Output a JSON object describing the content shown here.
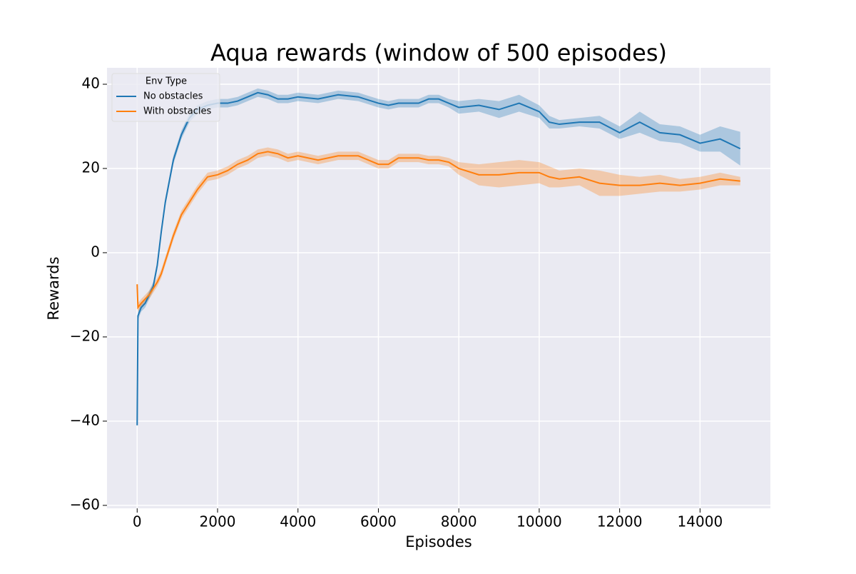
{
  "chart_data": {
    "type": "line",
    "title": "Aqua rewards (window of 500 episodes)",
    "x_label": "Episodes",
    "y_label": "Rewards",
    "legend_title": "Env Type",
    "legend_position": "upper left",
    "background": "#eaeaf2",
    "grid": true,
    "xlim": [
      -750,
      15750
    ],
    "ylim": [
      -60.7,
      43.9
    ],
    "xticks": [
      0,
      2000,
      4000,
      6000,
      8000,
      10000,
      12000,
      14000
    ],
    "yticks": [
      {
        "value": -60,
        "label": "−60"
      },
      {
        "value": -40,
        "label": "−40"
      },
      {
        "value": -20,
        "label": "−20"
      },
      0,
      20,
      40
    ],
    "x": [
      0,
      20,
      100,
      200,
      300,
      400,
      500,
      600,
      700,
      800,
      900,
      1000,
      1100,
      1200,
      1300,
      1400,
      1500,
      1750,
      2000,
      2250,
      2500,
      2750,
      3000,
      3250,
      3500,
      3750,
      4000,
      4500,
      5000,
      5500,
      6000,
      6250,
      6500,
      7000,
      7250,
      7500,
      7750,
      8000,
      8500,
      9000,
      9500,
      10000,
      10250,
      10500,
      11000,
      11500,
      12000,
      12500,
      13000,
      13500,
      14000,
      14500,
      15000
    ],
    "series": [
      {
        "name": "No obstacles",
        "color": "#1f77b4",
        "values": [
          -41,
          -15,
          -13,
          -12,
          -10,
          -8,
          -3,
          5,
          12,
          17,
          22,
          25,
          28,
          30,
          32,
          33,
          34,
          35,
          35.5,
          35.5,
          36,
          37,
          38,
          37.5,
          36.5,
          36.5,
          37,
          36.5,
          37.5,
          37,
          35.5,
          35,
          35.5,
          35.5,
          36.5,
          36.5,
          35.5,
          34.5,
          35,
          34,
          35.5,
          33.5,
          31,
          30.5,
          31,
          31,
          28.5,
          31,
          28.5,
          28,
          26,
          27,
          24.7
        ],
        "ci": [
          1,
          1,
          1,
          1,
          1,
          1,
          1,
          1,
          1,
          1,
          1,
          1,
          1,
          1,
          1,
          1,
          1,
          1,
          1,
          1,
          1,
          1,
          1,
          1,
          1,
          1,
          1,
          1,
          1,
          1,
          1,
          1,
          1,
          1,
          1,
          1,
          1,
          1.5,
          1.5,
          2,
          2,
          1.5,
          1.5,
          1,
          1,
          1.5,
          1.5,
          2.5,
          2,
          2,
          2,
          3,
          4
        ]
      },
      {
        "name": "With obstacles",
        "color": "#ff7f0e",
        "values": [
          -7.5,
          -13,
          -12,
          -11,
          -10,
          -8.5,
          -7,
          -5,
          -2,
          1,
          4,
          6.5,
          9,
          10.5,
          12,
          13.5,
          15,
          18,
          18.5,
          19.5,
          21,
          22,
          23.5,
          24,
          23.5,
          22.5,
          23,
          22,
          23,
          23,
          21,
          21,
          22.5,
          22.5,
          22,
          22,
          21.5,
          20,
          18.5,
          18.5,
          19,
          19,
          18,
          17.5,
          18,
          16.5,
          16,
          16,
          16.5,
          16,
          16.5,
          17.5,
          17
        ],
        "ci": [
          1,
          1,
          1,
          1,
          1,
          1,
          1,
          1,
          1,
          1,
          1,
          1,
          1,
          1,
          1,
          1,
          1,
          1,
          1,
          1,
          1,
          1,
          1,
          1,
          1,
          1,
          1,
          1,
          1,
          1,
          1,
          1,
          1,
          1,
          1,
          1,
          1,
          1.5,
          2.5,
          3,
          3,
          2.5,
          2.5,
          2,
          2,
          3,
          2.5,
          2,
          2,
          1.5,
          1.5,
          1.5,
          1
        ]
      }
    ]
  }
}
